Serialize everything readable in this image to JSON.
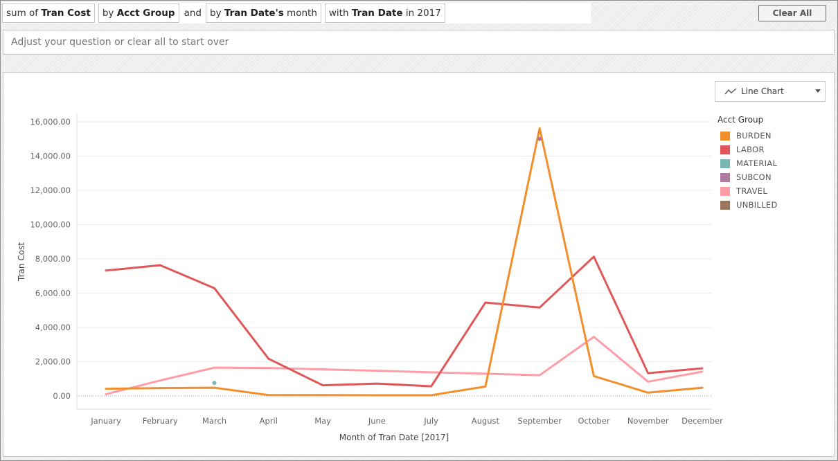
{
  "query": {
    "pill1_prefix": "sum of ",
    "pill1_bold": "Tran Cost",
    "pill2_prefix": "by ",
    "pill2_bold": "Acct Group",
    "connector": "and",
    "pill3_prefix": "by ",
    "pill3_bold": "Tran Date's",
    "pill3_suffix": " month",
    "pill4_prefix": "with ",
    "pill4_bold": "Tran Date",
    "pill4_suffix": " in 2017"
  },
  "clear_all_label": "Clear All",
  "question_placeholder": "Adjust your question or clear all to start over",
  "chart_type_selector": {
    "label": "Line Chart",
    "icon": "line-chart-icon"
  },
  "legend": {
    "title": "Acct Group",
    "items": [
      {
        "label": "BURDEN",
        "color": "#f28e2b"
      },
      {
        "label": "LABOR",
        "color": "#e15759"
      },
      {
        "label": "MATERIAL",
        "color": "#76b7b2"
      },
      {
        "label": "SUBCON",
        "color": "#b07aa1"
      },
      {
        "label": "TRAVEL",
        "color": "#ff9da7"
      },
      {
        "label": "UNBILLED",
        "color": "#9c755f"
      }
    ]
  },
  "chart_data": {
    "type": "line",
    "xlabel": "Month of Tran Date [2017]",
    "ylabel": "Tran Cost",
    "ylim": [
      0,
      16000
    ],
    "yticks": [
      "16,000.00",
      "14,000.00",
      "12,000.00",
      "10,000.00",
      "8,000.00",
      "6,000.00",
      "4,000.00",
      "2,000.00",
      "0.00"
    ],
    "yticks_values": [
      16000,
      14000,
      12000,
      10000,
      8000,
      6000,
      4000,
      2000,
      0
    ],
    "categories": [
      "January",
      "February",
      "March",
      "April",
      "May",
      "June",
      "July",
      "August",
      "September",
      "October",
      "November",
      "December"
    ],
    "grid": true,
    "legend_position": "right",
    "series": [
      {
        "name": "TRAVEL",
        "color": "#ff9da7",
        "values": [
          100,
          900,
          1650,
          1630,
          1550,
          1470,
          1380,
          1300,
          1210,
          3450,
          830,
          1420
        ]
      },
      {
        "name": "LABOR",
        "color": "#e15759",
        "values": [
          7320,
          7630,
          6290,
          2170,
          620,
          720,
          560,
          5450,
          5160,
          8130,
          1330,
          1610
        ]
      },
      {
        "name": "BURDEN",
        "color": "#f28e2b",
        "values": [
          420,
          460,
          480,
          50,
          50,
          40,
          40,
          550,
          15620,
          1160,
          190,
          480
        ]
      },
      {
        "name": "MATERIAL",
        "color": "#76b7b2",
        "points": [
          {
            "x": "March",
            "y": 760
          }
        ]
      },
      {
        "name": "SUBCON",
        "color": "#b07aa1",
        "points": [
          {
            "x": "September",
            "y": 15000
          }
        ]
      }
    ]
  }
}
